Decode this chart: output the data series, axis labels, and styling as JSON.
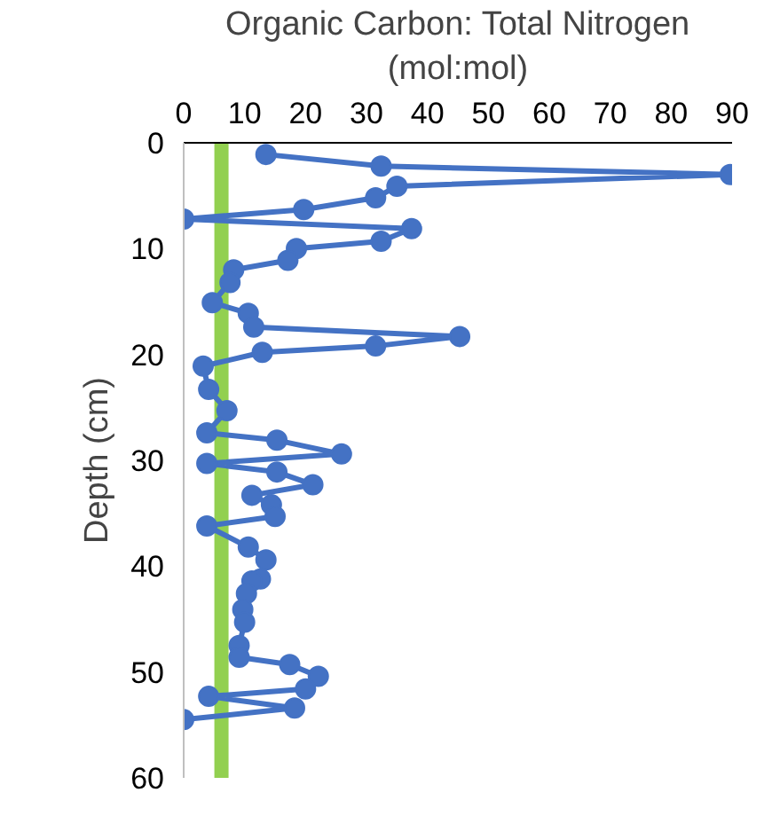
{
  "chart_data": {
    "type": "line",
    "xlabel": "Organic Carbon: Total Nitrogen\n(mol:mol)",
    "ylabel": "Depth (cm)",
    "xlim": [
      0,
      90
    ],
    "xticks": [
      0,
      10,
      20,
      30,
      40,
      50,
      60,
      70,
      80,
      90
    ],
    "ylim": [
      60,
      0
    ],
    "yticks": [
      0,
      10,
      20,
      30,
      40,
      50,
      60
    ],
    "grid": false,
    "marker": "circle",
    "line_style": "solid",
    "series": [
      {
        "color": "#4472c4",
        "x": [
          13.5,
          32.4,
          89.7,
          35.0,
          31.5,
          19.7,
          0,
          37.4,
          32.4,
          18.5,
          17.1,
          8.2,
          7.6,
          4.7,
          10.6,
          11.5,
          45.3,
          31.5,
          12.9,
          3.2,
          4.1,
          7.1,
          3.8,
          15.3,
          25.9,
          3.8,
          15.3,
          21.2,
          11.2,
          14.4,
          15.0,
          3.8,
          10.6,
          13.5,
          12.6,
          11.2,
          10.3,
          9.7,
          10.0,
          9.1,
          9.1,
          17.4,
          22.1,
          20.0,
          4.1,
          18.2,
          0
        ],
        "values": [
          1.1,
          2.2,
          3.0,
          4.1,
          5.2,
          6.3,
          7.2,
          8.1,
          9.3,
          10.0,
          11.1,
          12.0,
          13.2,
          15.1,
          16.1,
          17.4,
          18.3,
          19.2,
          19.8,
          21.1,
          23.3,
          25.3,
          27.4,
          28.1,
          29.4,
          30.3,
          31.1,
          32.3,
          33.3,
          34.2,
          35.3,
          36.2,
          38.2,
          39.4,
          41.2,
          41.4,
          42.6,
          44.1,
          45.3,
          47.5,
          48.6,
          49.3,
          50.4,
          51.6,
          52.3,
          53.4,
          54.5
        ]
      }
    ],
    "ref_lines": [
      {
        "axis": "x",
        "value": 6.2,
        "label": null,
        "color": "#92d050"
      }
    ]
  }
}
